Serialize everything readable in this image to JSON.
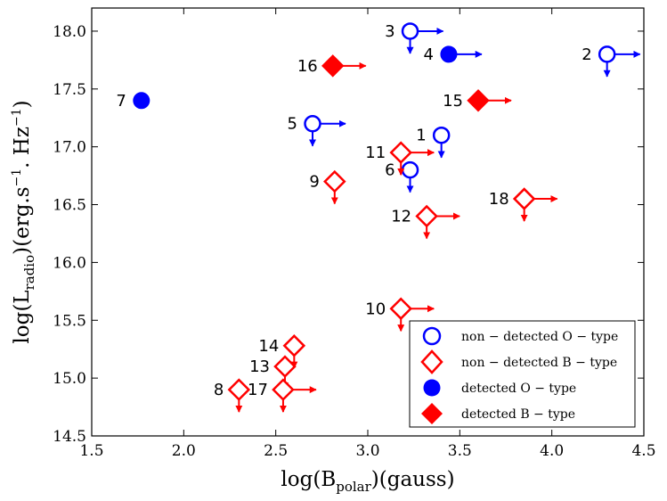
{
  "chart_data": {
    "type": "scatter",
    "title": "",
    "xlabel": "log(B_polar)(gauss)",
    "ylabel": "log(L_radio)(erg.s^-1. Hz^-1)",
    "xlabel_parts": {
      "pre": "log(B",
      "sub": "polar",
      "post": ")(gauss)"
    },
    "ylabel_parts": {
      "pre": "log(L",
      "sub": "radio",
      "mid": ")(erg.s",
      "sup1": "−1",
      "mid2": ". Hz",
      "sup2": "−1",
      "post": ")"
    },
    "xlim": [
      1.5,
      4.5
    ],
    "ylim": [
      14.5,
      18.2
    ],
    "xticks": [
      1.5,
      2.0,
      2.5,
      3.0,
      3.5,
      4.0,
      4.5
    ],
    "xtick_labels": [
      "1.5",
      "2.0",
      "2.5",
      "3.0",
      "3.5",
      "4.0",
      "4.5"
    ],
    "yticks": [
      14.5,
      15.0,
      15.5,
      16.0,
      16.5,
      17.0,
      17.5,
      18.0
    ],
    "ytick_labels": [
      "14.5",
      "15.0",
      "15.5",
      "16.0",
      "16.5",
      "17.0",
      "17.5",
      "18.0"
    ],
    "colors": {
      "o_type": "#0000ff",
      "b_type": "#ff0000"
    },
    "legend": {
      "position": "lower-right",
      "entries": [
        {
          "label": "non − detected O − type",
          "marker": "circle-open",
          "color": "#0000ff"
        },
        {
          "label": "non − detected B − type",
          "marker": "diamond-open",
          "color": "#ff0000"
        },
        {
          "label": "detected O − type",
          "marker": "circle-filled",
          "color": "#0000ff"
        },
        {
          "label": "detected B − type",
          "marker": "diamond-filled",
          "color": "#ff0000"
        }
      ]
    },
    "points": [
      {
        "id": "1",
        "x": 3.4,
        "y": 17.1,
        "class": "O",
        "detected": false,
        "lower_limit_x": false,
        "upper_limit_y": true
      },
      {
        "id": "2",
        "x": 4.3,
        "y": 17.8,
        "class": "O",
        "detected": false,
        "lower_limit_x": true,
        "upper_limit_y": true
      },
      {
        "id": "3",
        "x": 3.23,
        "y": 18.0,
        "class": "O",
        "detected": false,
        "lower_limit_x": true,
        "upper_limit_y": true
      },
      {
        "id": "4",
        "x": 3.44,
        "y": 17.8,
        "class": "O",
        "detected": true,
        "lower_limit_x": true,
        "upper_limit_y": false
      },
      {
        "id": "5",
        "x": 2.7,
        "y": 17.2,
        "class": "O",
        "detected": false,
        "lower_limit_x": true,
        "upper_limit_y": true
      },
      {
        "id": "6",
        "x": 3.23,
        "y": 16.8,
        "class": "O",
        "detected": false,
        "lower_limit_x": false,
        "upper_limit_y": true
      },
      {
        "id": "7",
        "x": 1.77,
        "y": 17.4,
        "class": "O",
        "detected": true,
        "lower_limit_x": false,
        "upper_limit_y": false
      },
      {
        "id": "8",
        "x": 2.3,
        "y": 14.9,
        "class": "B",
        "detected": false,
        "lower_limit_x": false,
        "upper_limit_y": true
      },
      {
        "id": "9",
        "x": 2.82,
        "y": 16.7,
        "class": "B",
        "detected": false,
        "lower_limit_x": false,
        "upper_limit_y": true
      },
      {
        "id": "10",
        "x": 3.18,
        "y": 15.6,
        "class": "B",
        "detected": false,
        "lower_limit_x": true,
        "upper_limit_y": true
      },
      {
        "id": "11",
        "x": 3.18,
        "y": 16.95,
        "class": "B",
        "detected": false,
        "lower_limit_x": true,
        "upper_limit_y": true
      },
      {
        "id": "12",
        "x": 3.32,
        "y": 16.4,
        "class": "B",
        "detected": false,
        "lower_limit_x": true,
        "upper_limit_y": true
      },
      {
        "id": "13",
        "x": 2.55,
        "y": 15.1,
        "class": "B",
        "detected": false,
        "lower_limit_x": false,
        "upper_limit_y": true
      },
      {
        "id": "14",
        "x": 2.6,
        "y": 15.28,
        "class": "B",
        "detected": false,
        "lower_limit_x": false,
        "upper_limit_y": true
      },
      {
        "id": "15",
        "x": 3.6,
        "y": 17.4,
        "class": "B",
        "detected": true,
        "lower_limit_x": true,
        "upper_limit_y": false
      },
      {
        "id": "16",
        "x": 2.81,
        "y": 17.7,
        "class": "B",
        "detected": true,
        "lower_limit_x": true,
        "upper_limit_y": false
      },
      {
        "id": "17",
        "x": 2.54,
        "y": 14.9,
        "class": "B",
        "detected": false,
        "lower_limit_x": true,
        "upper_limit_y": true
      },
      {
        "id": "18",
        "x": 3.85,
        "y": 16.55,
        "class": "B",
        "detected": false,
        "lower_limit_x": true,
        "upper_limit_y": true
      }
    ]
  }
}
